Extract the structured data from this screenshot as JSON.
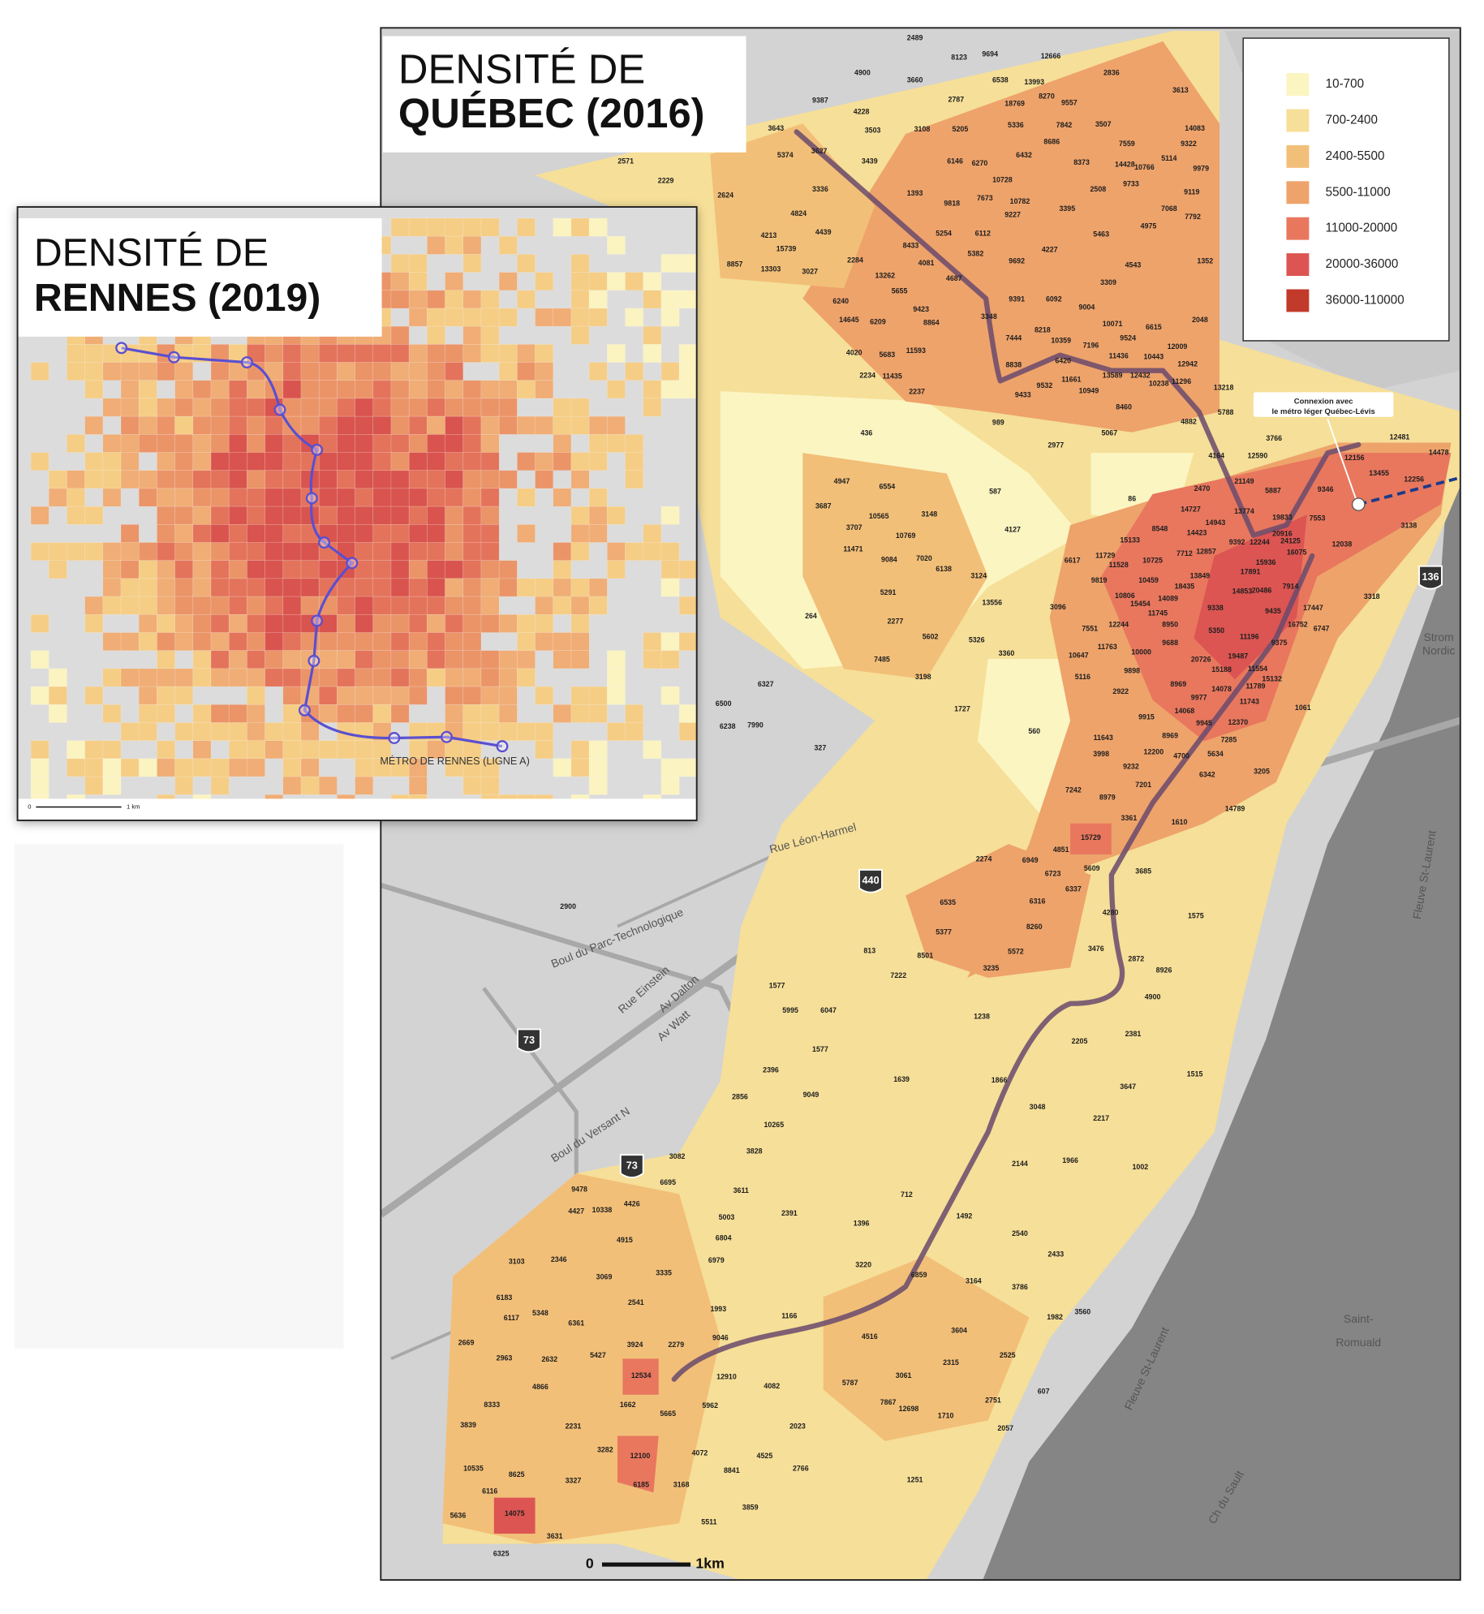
{
  "quebec": {
    "title_line1": "DENSITÉ DE",
    "title_line2": "QUÉBEC (2016)",
    "legend": [
      {
        "label": "10-700",
        "color": "#fbf5c2"
      },
      {
        "label": "700-2400",
        "color": "#f6df98"
      },
      {
        "label": "2400-5500",
        "color": "#f2bf78"
      },
      {
        "label": "5500-11000",
        "color": "#eea36b"
      },
      {
        "label": "11000-20000",
        "color": "#e8775e"
      },
      {
        "label": "20000-36000",
        "color": "#dc5552"
      },
      {
        "label": "36000-110000",
        "color": "#c13a2a"
      }
    ],
    "annotation": [
      "Connexion avec",
      "le métro léger Québec-Lévis"
    ],
    "scale": [
      "0",
      "1km"
    ],
    "street_labels": [
      "Rue Léon-Harmel",
      "Boul du Parc-Technologique",
      "Rue Einstein",
      "Av Dalton",
      "Av Watt",
      "Boul du Versant N",
      "Fleuve St-Laurent",
      "Fleuve St-Laurent",
      "Saint-",
      "Romuald",
      "Ch du Sault",
      "Strom",
      "Nordic"
    ],
    "road_shields": [
      "440",
      "73",
      "73",
      "136"
    ],
    "density_labels": [
      2489,
      8123,
      9694,
      12666,
      4900,
      3660,
      6538,
      13993,
      2836,
      3613,
      9387,
      4228,
      2787,
      18769,
      8270,
      9557,
      3503,
      3108,
      5205,
      5336,
      7842,
      3507,
      14083,
      3643,
      3627,
      5374,
      3439,
      2571,
      6146,
      6270,
      6432,
      8686,
      8373,
      7559,
      9322,
      14428,
      10766,
      5114,
      9979,
      2229,
      10728,
      9733,
      2508,
      9119,
      3336,
      2624,
      1393,
      7673,
      10782,
      9818,
      9227,
      3395,
      7068,
      7792,
      4824,
      4975,
      4213,
      4439,
      5254,
      6112,
      15739,
      8433,
      5382,
      4227,
      5463,
      8857,
      13303,
      3027,
      2284,
      4081,
      9692,
      4543,
      1352,
      13262,
      4687,
      5655,
      3309,
      6240,
      9391,
      6092,
      9423,
      9004,
      14645,
      6209,
      8864,
      3348,
      10071,
      6615,
      2048,
      8218,
      7444,
      10359,
      7196,
      9524,
      12009,
      4020,
      5683,
      11593,
      6420,
      11436,
      10443,
      12942,
      8838,
      13589,
      12432,
      2234,
      11435,
      11661,
      9532,
      10238,
      11296,
      13218,
      2237,
      9433,
      10949,
      8460,
      5788,
      4882,
      989,
      436,
      5067,
      2977,
      3766,
      12590,
      4164,
      12481,
      14478,
      12156,
      13455,
      12256,
      21149,
      4947,
      6554,
      587,
      2470,
      5887,
      9346,
      86,
      3687,
      14727,
      13774,
      19833,
      7553,
      10565,
      3148,
      14943,
      8548,
      3707,
      14423,
      20916,
      12038,
      3138,
      4127,
      10769,
      9392,
      12244,
      24125,
      15133,
      7712,
      12857,
      16075,
      11471,
      11729,
      10725,
      6617,
      11528,
      15936,
      9084,
      7020,
      6138,
      17891,
      13849,
      3124,
      9819,
      10459,
      18435,
      7914,
      10806,
      14853,
      20486,
      3318,
      264,
      5291,
      15454,
      14089,
      11745,
      9338,
      9435,
      17447,
      3096,
      13556,
      8950,
      16752,
      6747,
      12244,
      7551,
      5350,
      2277,
      11196,
      9688,
      9375,
      5602,
      5326,
      11763,
      10000,
      20726,
      19487,
      3360,
      10647,
      7485,
      15188,
      11554,
      9898,
      5116,
      3198,
      15132,
      8969,
      14078,
      11789,
      2922,
      6327,
      9977,
      11743,
      6500,
      1727,
      1061,
      14068,
      9915,
      9945,
      12370,
      6238,
      7990,
      560,
      8969,
      11643,
      7285,
      327,
      12200,
      3998,
      4700,
      5634,
      9232,
      3205,
      6342,
      7201,
      7242,
      8979,
      14789,
      3361,
      1610,
      15729,
      4851,
      2274,
      6949,
      6723,
      5609,
      3685,
      6337,
      6316,
      6535,
      4280,
      2900,
      1575,
      5377,
      8260,
      3476,
      813,
      8501,
      5572,
      2872,
      3235,
      8926,
      7222,
      1577,
      4900,
      5995,
      6047,
      1238,
      2381,
      2205,
      1577,
      2396,
      1866,
      1639,
      1515,
      3647,
      2856,
      9049,
      3048,
      2217,
      10265,
      3828,
      3082,
      2144,
      1966,
      1002,
      6695,
      3611,
      712,
      9478,
      4427,
      10338,
      4426,
      2391,
      5003,
      1492,
      1396,
      4915,
      6804,
      2540,
      3103,
      2346,
      6979,
      2433,
      3220,
      3335,
      3069,
      6859,
      3164,
      3786,
      6183,
      2541,
      1993,
      3560,
      6117,
      5348,
      1166,
      1982,
      6361,
      4516,
      9046,
      3604,
      3924,
      2279,
      2669,
      5427,
      2963,
      2632,
      2525,
      2315,
      12534,
      12910,
      3061,
      4866,
      4082,
      5787,
      607,
      8333,
      1662,
      5962,
      7867,
      12698,
      2751,
      5665,
      1710,
      3839,
      2231,
      2023,
      2057,
      3282,
      4072,
      12100,
      4525,
      10535,
      2766,
      8841,
      8625,
      3327,
      1251,
      6185,
      3168,
      6116,
      3859,
      5636,
      14075,
      5511,
      3631,
      6325
    ]
  },
  "rennes": {
    "title_line1": "DENSITÉ DE",
    "title_line2": "RENNES (2019)",
    "metro_label": "MÉTRO DE RENNES (LIGNE A)",
    "scale": [
      "0",
      "1 km"
    ]
  }
}
